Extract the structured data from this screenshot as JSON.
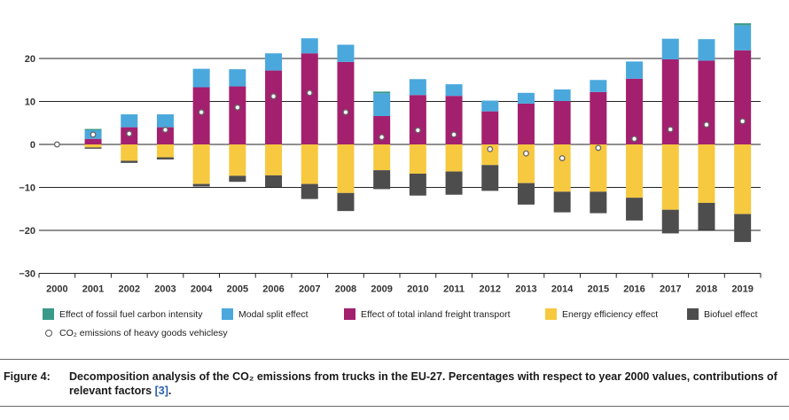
{
  "chart_data": {
    "type": "bar",
    "stacked": true,
    "title": "",
    "xlabel": "",
    "ylabel": "",
    "ylim": [
      -30,
      28
    ],
    "yticks": [
      -30,
      -20,
      -10,
      0,
      10,
      20
    ],
    "ytick_labels": [
      "−30",
      "−20",
      "−10",
      "0",
      "10",
      "20"
    ],
    "categories": [
      "2000",
      "2001",
      "2002",
      "2003",
      "2004",
      "2005",
      "2006",
      "2007",
      "2008",
      "2009",
      "2010",
      "2011",
      "2012",
      "2013",
      "2014",
      "2015",
      "2016",
      "2017",
      "2018",
      "2019"
    ],
    "series": [
      {
        "name": "Effect of fossil fuel carbon intensity",
        "color": "#3a9a8a",
        "values": [
          0,
          0.3,
          0,
          0,
          0,
          0,
          0,
          0,
          0,
          0.4,
          0,
          0,
          0,
          0,
          0,
          0,
          0,
          0,
          0,
          0.5
        ]
      },
      {
        "name": "Modal split effect",
        "color": "#4aa8dd",
        "values": [
          0,
          2.0,
          3.0,
          3.0,
          4.3,
          4.0,
          4.0,
          3.5,
          4.0,
          5.3,
          3.7,
          2.7,
          2.5,
          2.5,
          2.7,
          2.8,
          4.0,
          4.8,
          5.0,
          5.8
        ]
      },
      {
        "name": "Effect of total inland freight transport",
        "color": "#a3206e",
        "values": [
          0,
          1.3,
          4.0,
          4.0,
          13.3,
          13.5,
          17.2,
          21.2,
          19.2,
          6.6,
          11.5,
          11.3,
          7.7,
          9.5,
          10.1,
          12.2,
          15.3,
          19.8,
          19.5,
          21.9
        ]
      },
      {
        "name": "Energy efficiency effect",
        "color": "#f7c940",
        "values": [
          0,
          -0.7,
          -3.8,
          -3.0,
          -9.2,
          -7.3,
          -7.2,
          -9.2,
          -11.3,
          -6.0,
          -6.8,
          -6.3,
          -4.8,
          -9.0,
          -11.0,
          -11.0,
          -12.4,
          -15.2,
          -13.6,
          -16.2
        ]
      },
      {
        "name": "Biofuel effect",
        "color": "#4d4d4d",
        "values": [
          0,
          -0.3,
          -0.5,
          -0.5,
          -0.6,
          -1.4,
          -2.7,
          -3.5,
          -4.2,
          -4.4,
          -5.1,
          -5.4,
          -6.0,
          -5.0,
          -4.8,
          -5.0,
          -5.3,
          -5.5,
          -6.3,
          -6.5
        ]
      }
    ],
    "line": {
      "name": "CO₂ emissions of heavy goods vehiclesy",
      "marker": "circle",
      "values": [
        0,
        2.3,
        2.5,
        3.4,
        7.5,
        8.6,
        11.2,
        12.0,
        7.5,
        1.7,
        3.3,
        2.3,
        -1.1,
        -2.1,
        -3.2,
        -0.8,
        1.3,
        3.5,
        4.6,
        5.4
      ]
    },
    "legend_position": "bottom"
  },
  "legend": {
    "items": [
      {
        "label": "Effect of fossil fuel carbon intensity",
        "color": "#3a9a8a"
      },
      {
        "label": "Modal split effect",
        "color": "#4aa8dd"
      },
      {
        "label": "Effect of total inland freight transport",
        "color": "#a3206e"
      },
      {
        "label": "Energy efficiency effect",
        "color": "#f7c940"
      },
      {
        "label": "Biofuel effect",
        "color": "#4d4d4d"
      }
    ],
    "marker_label": "CO₂ emissions of heavy goods vehiclesy"
  },
  "caption": {
    "label": "Figure 4:",
    "text": "Decomposition analysis of the CO₂ emissions from trucks in the EU-27. Percentages with respect to year 2000 values, contributions of relevant factors",
    "ref": "[3]",
    "end": "."
  }
}
